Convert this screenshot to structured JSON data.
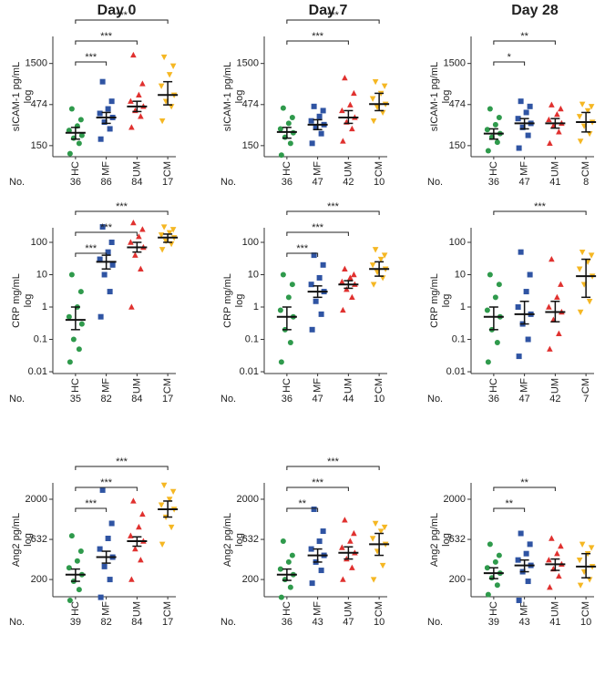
{
  "columns": [
    "Day 0",
    "Day 7",
    "Day 28"
  ],
  "chart_data": [
    {
      "type": "scatter",
      "ylabel": "sICAM-1 pg/mL",
      "ylabel_sub": "log",
      "yscale": "log",
      "ylim": [
        110,
        3200
      ],
      "yticks": [
        150,
        474,
        1500
      ],
      "n_label": "No.",
      "n": [
        36,
        86,
        84,
        17
      ],
      "series": [
        {
          "name": "HC",
          "color": "#2f9a4c",
          "values": [
            120,
            160,
            185,
            200,
            230,
            260,
            310,
            420
          ],
          "median": 215,
          "q1": 180,
          "q3": 250
        },
        {
          "name": "MF",
          "color": "#2f54a3",
          "values": [
            180,
            240,
            290,
            330,
            370,
            420,
            520,
            900
          ],
          "median": 330,
          "q1": 280,
          "q3": 380
        },
        {
          "name": "UM",
          "color": "#e0312f",
          "values": [
            250,
            340,
            400,
            450,
            520,
            620,
            850,
            1900
          ],
          "median": 450,
          "q1": 390,
          "q3": 520
        },
        {
          "name": "CM",
          "color": "#f5b723",
          "values": [
            300,
            450,
            520,
            620,
            800,
            1100,
            1400,
            1800
          ],
          "median": 620,
          "q1": 470,
          "q3": 900
        }
      ],
      "brackets": [
        {
          "from": 0,
          "to": 1,
          "label": "***"
        },
        {
          "from": 0,
          "to": 2,
          "label": "***"
        },
        {
          "from": 0,
          "to": 3,
          "label": "***"
        }
      ]
    },
    {
      "type": "scatter",
      "ylabel": "sICAM-1 pg/mL",
      "ylabel_sub": "log",
      "yscale": "log",
      "ylim": [
        110,
        3200
      ],
      "yticks": [
        150,
        474,
        1500
      ],
      "n_label": "No.",
      "n": [
        36,
        47,
        42,
        10
      ],
      "series": [
        {
          "name": "HC",
          "color": "#2f9a4c",
          "values": [
            115,
            160,
            190,
            215,
            240,
            280,
            330,
            430
          ],
          "median": 220,
          "q1": 185,
          "q3": 250
        },
        {
          "name": "MF",
          "color": "#2f54a3",
          "values": [
            160,
            210,
            250,
            270,
            300,
            340,
            400,
            450
          ],
          "median": 270,
          "q1": 235,
          "q3": 310
        },
        {
          "name": "UM",
          "color": "#e0312f",
          "values": [
            170,
            240,
            290,
            330,
            400,
            470,
            650,
            1000
          ],
          "median": 330,
          "q1": 280,
          "q3": 400
        },
        {
          "name": "CM",
          "color": "#f5b723",
          "values": [
            300,
            380,
            440,
            480,
            560,
            650,
            800,
            900
          ],
          "median": 480,
          "q1": 400,
          "q3": 650
        }
      ],
      "brackets": [
        {
          "from": 0,
          "to": 2,
          "label": "***"
        },
        {
          "from": 0,
          "to": 3,
          "label": "***"
        }
      ]
    },
    {
      "type": "scatter",
      "ylabel": "sICAM-1 pg/mL",
      "ylabel_sub": "log",
      "yscale": "log",
      "ylim": [
        110,
        3200
      ],
      "yticks": [
        150,
        474,
        1500
      ],
      "n_label": "No.",
      "n": [
        36,
        47,
        41,
        8
      ],
      "series": [
        {
          "name": "HC",
          "color": "#2f9a4c",
          "values": [
            130,
            165,
            190,
            210,
            235,
            270,
            330,
            420
          ],
          "median": 210,
          "q1": 180,
          "q3": 240
        },
        {
          "name": "MF",
          "color": "#2f54a3",
          "values": [
            140,
            200,
            250,
            280,
            320,
            380,
            450,
            520
          ],
          "median": 280,
          "q1": 240,
          "q3": 320
        },
        {
          "name": "UM",
          "color": "#e0312f",
          "values": [
            160,
            220,
            260,
            280,
            310,
            360,
            420,
            470
          ],
          "median": 280,
          "q1": 245,
          "q3": 320
        },
        {
          "name": "CM",
          "color": "#f5b723",
          "values": [
            170,
            210,
            260,
            290,
            340,
            400,
            450,
            480
          ],
          "median": 290,
          "q1": 220,
          "q3": 380
        }
      ],
      "brackets": [
        {
          "from": 0,
          "to": 1,
          "label": "*"
        },
        {
          "from": 0,
          "to": 2,
          "label": "**"
        }
      ]
    },
    {
      "type": "scatter",
      "ylabel": "CRP mg/mL",
      "ylabel_sub": "log",
      "yscale": "log",
      "ylim": [
        0.0088,
        282
      ],
      "yticks": [
        0.01,
        0.1,
        1,
        10,
        100
      ],
      "n_label": "No.",
      "n": [
        35,
        82,
        84,
        17
      ],
      "series": [
        {
          "name": "HC",
          "color": "#2f9a4c",
          "values": [
            0.02,
            0.05,
            0.1,
            0.3,
            0.5,
            1,
            3,
            10
          ],
          "median": 0.4,
          "q1": 0.2,
          "q3": 1
        },
        {
          "name": "MF",
          "color": "#2f54a3",
          "values": [
            0.5,
            3,
            10,
            20,
            30,
            50,
            100,
            300
          ],
          "median": 25,
          "q1": 15,
          "q3": 40
        },
        {
          "name": "UM",
          "color": "#e0312f",
          "values": [
            1,
            15,
            40,
            70,
            100,
            150,
            250,
            400
          ],
          "median": 70,
          "q1": 50,
          "q3": 100
        },
        {
          "name": "CM",
          "color": "#f5b723",
          "values": [
            60,
            90,
            110,
            140,
            170,
            200,
            250,
            300
          ],
          "median": 140,
          "q1": 100,
          "q3": 180
        }
      ],
      "brackets": [
        {
          "from": 0,
          "to": 1,
          "label": "***"
        },
        {
          "from": 0,
          "to": 2,
          "label": "***"
        },
        {
          "from": 0,
          "to": 3,
          "label": "***"
        }
      ]
    },
    {
      "type": "scatter",
      "ylabel": "CRP mg/mL",
      "ylabel_sub": "log",
      "yscale": "log",
      "ylim": [
        0.0088,
        282
      ],
      "yticks": [
        0.01,
        0.1,
        1,
        10,
        100
      ],
      "n_label": "No.",
      "n": [
        36,
        47,
        44,
        10
      ],
      "series": [
        {
          "name": "HC",
          "color": "#2f9a4c",
          "values": [
            0.02,
            0.08,
            0.2,
            0.5,
            0.8,
            2,
            5,
            10
          ],
          "median": 0.5,
          "q1": 0.2,
          "q3": 1
        },
        {
          "name": "MF",
          "color": "#2f54a3",
          "values": [
            0.2,
            0.6,
            1.5,
            3,
            5,
            8,
            20,
            40
          ],
          "median": 3,
          "q1": 2,
          "q3": 4.5
        },
        {
          "name": "UM",
          "color": "#e0312f",
          "values": [
            0.8,
            2,
            3.5,
            5,
            6,
            8,
            10,
            15
          ],
          "median": 5,
          "q1": 3.8,
          "q3": 6.5
        },
        {
          "name": "CM",
          "color": "#f5b723",
          "values": [
            5,
            8,
            12,
            15,
            20,
            30,
            40,
            60
          ],
          "median": 15,
          "q1": 9,
          "q3": 25
        }
      ],
      "brackets": [
        {
          "from": 0,
          "to": 1,
          "label": "***"
        },
        {
          "from": 0,
          "to": 2,
          "label": "***"
        },
        {
          "from": 0,
          "to": 3,
          "label": "***"
        }
      ]
    },
    {
      "type": "scatter",
      "ylabel": "CRP mg/mL",
      "ylabel_sub": "log",
      "yscale": "log",
      "ylim": [
        0.0088,
        282
      ],
      "yticks": [
        0.01,
        0.1,
        1,
        10,
        100
      ],
      "n_label": "No.",
      "n": [
        36,
        47,
        42,
        7
      ],
      "series": [
        {
          "name": "HC",
          "color": "#2f9a4c",
          "values": [
            0.02,
            0.08,
            0.2,
            0.5,
            0.8,
            2,
            5,
            10
          ],
          "median": 0.5,
          "q1": 0.2,
          "q3": 1
        },
        {
          "name": "MF",
          "color": "#2f54a3",
          "values": [
            0.03,
            0.1,
            0.3,
            0.6,
            1,
            3,
            10,
            50
          ],
          "median": 0.6,
          "q1": 0.3,
          "q3": 1.5
        },
        {
          "name": "UM",
          "color": "#e0312f",
          "values": [
            0.05,
            0.15,
            0.4,
            0.7,
            1,
            2,
            5,
            30
          ],
          "median": 0.7,
          "q1": 0.35,
          "q3": 1.5
        },
        {
          "name": "CM",
          "color": "#f5b723",
          "values": [
            0.7,
            1.5,
            5,
            9,
            15,
            25,
            40,
            50
          ],
          "median": 9,
          "q1": 2,
          "q3": 30
        }
      ],
      "brackets": [
        {
          "from": 0,
          "to": 3,
          "label": "***"
        }
      ]
    },
    {
      "type": "scatter",
      "ylabel": "Ang2 pg/mL",
      "ylabel_sub": "log",
      "yscale": "log",
      "ylim": [
        122,
        3200
      ],
      "yticks": [
        200,
        632,
        2000
      ],
      "n_label": "No.",
      "n": [
        39,
        82,
        84,
        17
      ],
      "series": [
        {
          "name": "HC",
          "color": "#2f9a4c",
          "values": [
            110,
            150,
            190,
            230,
            280,
            340,
            450,
            700
          ],
          "median": 230,
          "q1": 190,
          "q3": 270
        },
        {
          "name": "MF",
          "color": "#2f54a3",
          "values": [
            120,
            200,
            290,
            380,
            480,
            650,
            1000,
            2600
          ],
          "median": 380,
          "q1": 320,
          "q3": 450
        },
        {
          "name": "UM",
          "color": "#e0312f",
          "values": [
            200,
            350,
            480,
            600,
            700,
            900,
            1300,
            1900
          ],
          "median": 600,
          "q1": 520,
          "q3": 680
        },
        {
          "name": "CM",
          "color": "#f5b723",
          "values": [
            550,
            900,
            1200,
            1500,
            1700,
            2000,
            2500,
            3000
          ],
          "median": 1500,
          "q1": 1200,
          "q3": 1900
        }
      ],
      "brackets": [
        {
          "from": 0,
          "to": 1,
          "label": "***"
        },
        {
          "from": 0,
          "to": 2,
          "label": "***"
        },
        {
          "from": 0,
          "to": 3,
          "label": "***"
        }
      ]
    },
    {
      "type": "scatter",
      "ylabel": "Ang2 pg/mL",
      "ylabel_sub": "log",
      "yscale": "log",
      "ylim": [
        122,
        3200
      ],
      "yticks": [
        200,
        632,
        2000
      ],
      "n_label": "No.",
      "n": [
        36,
        43,
        47,
        10
      ],
      "series": [
        {
          "name": "HC",
          "color": "#2f9a4c",
          "values": [
            120,
            160,
            200,
            230,
            270,
            330,
            400,
            600
          ],
          "median": 230,
          "q1": 195,
          "q3": 270
        },
        {
          "name": "MF",
          "color": "#2f54a3",
          "values": [
            180,
            260,
            330,
            400,
            480,
            600,
            800,
            1500
          ],
          "median": 400,
          "q1": 330,
          "q3": 480
        },
        {
          "name": "UM",
          "color": "#e0312f",
          "values": [
            200,
            280,
            360,
            430,
            500,
            600,
            750,
            1100
          ],
          "median": 430,
          "q1": 360,
          "q3": 510
        },
        {
          "name": "CM",
          "color": "#f5b723",
          "values": [
            200,
            300,
            450,
            550,
            650,
            800,
            900,
            1000
          ],
          "median": 550,
          "q1": 400,
          "q3": 750
        }
      ],
      "brackets": [
        {
          "from": 0,
          "to": 1,
          "label": "**"
        },
        {
          "from": 0,
          "to": 2,
          "label": "***"
        },
        {
          "from": 0,
          "to": 3,
          "label": "***"
        }
      ]
    },
    {
      "type": "scatter",
      "ylabel": "Ang2 pg/mL",
      "ylabel_sub": "log",
      "yscale": "log",
      "ylim": [
        122,
        3200
      ],
      "yticks": [
        200,
        632,
        2000
      ],
      "n_label": "No.",
      "n": [
        39,
        43,
        41,
        10
      ],
      "series": [
        {
          "name": "HC",
          "color": "#2f9a4c",
          "values": [
            130,
            170,
            210,
            240,
            280,
            330,
            400,
            550
          ],
          "median": 240,
          "q1": 205,
          "q3": 280
        },
        {
          "name": "MF",
          "color": "#2f54a3",
          "values": [
            110,
            190,
            250,
            300,
            350,
            420,
            550,
            750
          ],
          "median": 300,
          "q1": 250,
          "q3": 350
        },
        {
          "name": "UM",
          "color": "#e0312f",
          "values": [
            160,
            220,
            270,
            310,
            350,
            420,
            520,
            650
          ],
          "median": 310,
          "q1": 260,
          "q3": 360
        },
        {
          "name": "CM",
          "color": "#f5b723",
          "values": [
            170,
            200,
            250,
            290,
            350,
            420,
            500,
            550
          ],
          "median": 290,
          "q1": 210,
          "q3": 420
        }
      ],
      "brackets": [
        {
          "from": 0,
          "to": 1,
          "label": "**"
        },
        {
          "from": 0,
          "to": 2,
          "label": "**"
        }
      ]
    }
  ]
}
